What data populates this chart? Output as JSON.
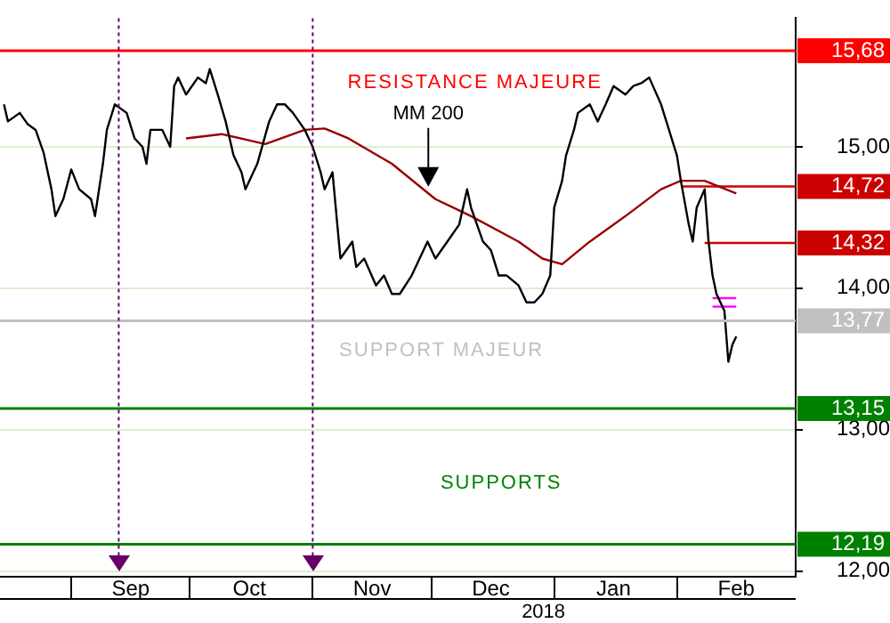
{
  "chart_data": {
    "type": "line",
    "marker": "none",
    "legend": false,
    "grid": "y",
    "xlim": [
      "2017-08-14",
      "2018-03-03"
    ],
    "xticks": [
      {
        "value": "2017-09-01",
        "label": null
      },
      {
        "value": "2017-09-16",
        "label": "Sep"
      },
      {
        "value": "2017-10-01",
        "label": null
      },
      {
        "value": "2017-10-16",
        "label": "Oct"
      },
      {
        "value": "2017-11-01",
        "label": null
      },
      {
        "value": "2017-11-16",
        "label": "Nov"
      },
      {
        "value": "2017-12-01",
        "label": null
      },
      {
        "value": "2017-12-16",
        "label": "Dec"
      },
      {
        "value": "2018-01-01",
        "label": null
      },
      {
        "value": "2018-01-16",
        "label": "Jan"
      },
      {
        "value": "2018-02-01",
        "label": null
      },
      {
        "value": "2018-02-16",
        "label": "Feb"
      }
    ],
    "ylim": [
      11.96,
      15.91
    ],
    "yticks": [
      {
        "value": 12,
        "label": "12,00"
      },
      {
        "value": 13,
        "label": "13,00"
      },
      {
        "value": 14,
        "label": "14,00"
      },
      {
        "value": 15,
        "label": "15,00"
      }
    ],
    "series": [
      {
        "color": "#000000",
        "x": [
          "2017-08-15",
          "2017-08-16",
          "2017-08-19",
          "2017-08-21",
          "2017-08-23",
          "2017-08-25",
          "2017-08-27",
          "2017-08-28",
          "2017-08-30",
          "2017-09-01",
          "2017-09-03",
          "2017-09-06",
          "2017-09-07",
          "2017-09-09",
          "2017-09-10",
          "2017-09-12",
          "2017-09-15",
          "2017-09-17",
          "2017-09-19",
          "2017-09-20",
          "2017-09-21",
          "2017-09-24",
          "2017-09-26",
          "2017-09-27",
          "2017-09-28",
          "2017-09-30",
          "2017-10-03",
          "2017-10-05",
          "2017-10-06",
          "2017-10-08",
          "2017-10-10",
          "2017-10-12",
          "2017-10-14",
          "2017-10-15",
          "2017-10-17",
          "2017-10-18",
          "2017-10-21",
          "2017-10-23",
          "2017-10-25",
          "2017-10-27",
          "2017-10-30",
          "2017-11-01",
          "2017-11-03",
          "2017-11-04",
          "2017-11-06",
          "2017-11-08",
          "2017-11-11",
          "2017-11-12",
          "2017-11-14",
          "2017-11-17",
          "2017-11-19",
          "2017-11-21",
          "2017-11-23",
          "2017-11-26",
          "2017-11-28",
          "2017-11-30",
          "2017-12-02",
          "2017-12-05",
          "2017-12-08",
          "2017-12-10",
          "2017-12-11",
          "2017-12-14",
          "2017-12-16",
          "2017-12-18",
          "2017-12-20",
          "2017-12-23",
          "2017-12-25",
          "2017-12-27",
          "2017-12-29",
          "2017-12-31",
          "2018-01-01",
          "2018-01-03",
          "2018-01-04",
          "2018-01-06",
          "2018-01-07",
          "2018-01-10",
          "2018-01-12",
          "2018-01-14",
          "2018-01-16",
          "2018-01-19",
          "2018-01-21",
          "2018-01-23",
          "2018-01-25",
          "2018-01-28",
          "2018-01-30",
          "2018-02-01",
          "2018-02-02",
          "2018-02-04",
          "2018-02-05",
          "2018-02-06",
          "2018-02-08",
          "2018-02-09",
          "2018-02-10",
          "2018-02-11",
          "2018-02-13",
          "2018-02-14",
          "2018-02-15",
          "2018-02-16"
        ],
        "values": [
          15.3,
          15.18,
          15.24,
          15.16,
          15.12,
          14.96,
          14.7,
          14.51,
          14.63,
          14.84,
          14.7,
          14.63,
          14.51,
          14.88,
          15.12,
          15.3,
          15.24,
          15.06,
          15.0,
          14.88,
          15.12,
          15.12,
          15.0,
          15.43,
          15.49,
          15.37,
          15.49,
          15.45,
          15.55,
          15.37,
          15.18,
          14.94,
          14.82,
          14.7,
          14.82,
          14.88,
          15.18,
          15.3,
          15.3,
          15.24,
          15.12,
          15.0,
          14.82,
          14.7,
          14.82,
          14.21,
          14.33,
          14.15,
          14.21,
          14.02,
          14.09,
          13.96,
          13.96,
          14.09,
          14.21,
          14.33,
          14.21,
          14.33,
          14.45,
          14.7,
          14.57,
          14.33,
          14.27,
          14.09,
          14.09,
          14.02,
          13.9,
          13.9,
          13.96,
          14.09,
          14.57,
          14.76,
          14.94,
          15.12,
          15.24,
          15.3,
          15.18,
          15.3,
          15.43,
          15.37,
          15.43,
          15.45,
          15.49,
          15.3,
          15.12,
          14.94,
          14.76,
          14.45,
          14.33,
          14.57,
          14.7,
          14.33,
          14.09,
          13.96,
          13.84,
          13.48,
          13.6,
          13.66
        ]
      },
      {
        "name": "MM 200",
        "color": "#990000",
        "x": [
          "2017-09-30",
          "2017-10-09",
          "2017-10-20",
          "2017-10-30",
          "2017-11-04",
          "2017-11-10",
          "2017-11-21",
          "2017-12-02",
          "2017-12-11",
          "2017-12-23",
          "2017-12-29",
          "2018-01-03",
          "2018-01-10",
          "2018-01-19",
          "2018-01-28",
          "2018-02-02",
          "2018-02-08",
          "2018-02-16"
        ],
        "values": [
          15.06,
          15.09,
          15.02,
          15.12,
          15.13,
          15.06,
          14.88,
          14.63,
          14.51,
          14.33,
          14.21,
          14.17,
          14.33,
          14.51,
          14.7,
          14.76,
          14.76,
          14.67
        ]
      },
      {
        "color": "#cc0000",
        "x": [
          "2018-02-02",
          "2018-03-03"
        ],
        "values": [
          14.72,
          14.72
        ],
        "value_labels": [
          null,
          "14,72"
        ]
      },
      {
        "color": "#cc0000",
        "x": [
          "2018-02-08",
          "2018-03-03"
        ],
        "values": [
          14.32,
          14.32
        ],
        "value_labels": [
          null,
          "14,32"
        ]
      },
      {
        "color": "#ff00ff",
        "x": [
          "2018-02-10",
          "2018-02-16"
        ],
        "values": [
          13.93,
          13.93
        ]
      },
      {
        "color": "#ff00ff",
        "x": [
          "2018-02-10",
          "2018-02-16"
        ],
        "values": [
          13.87,
          13.87
        ]
      }
    ],
    "ref_lines": [
      {
        "axis": "y",
        "value": 15.68,
        "label": "15,68",
        "color": "#ff0000"
      },
      {
        "axis": "y",
        "value": 13.77,
        "label": "13,77",
        "color": "#c0c0c0"
      },
      {
        "axis": "y",
        "value": 13.15,
        "label": "13,15",
        "color": "#008000"
      },
      {
        "axis": "y",
        "value": 12.19,
        "label": "12,19",
        "color": "#008000"
      },
      {
        "axis": "x",
        "value": "2017-09-13",
        "color": "#660066",
        "line_style": "dotted"
      },
      {
        "axis": "x",
        "value": "2017-11-01",
        "color": "#660066",
        "line_style": "dotted"
      }
    ],
    "annotations": [
      "RESISTANCE MAJEURE",
      "SUPPORT MAJEUR",
      "SUPPORTS",
      "2018"
    ]
  }
}
